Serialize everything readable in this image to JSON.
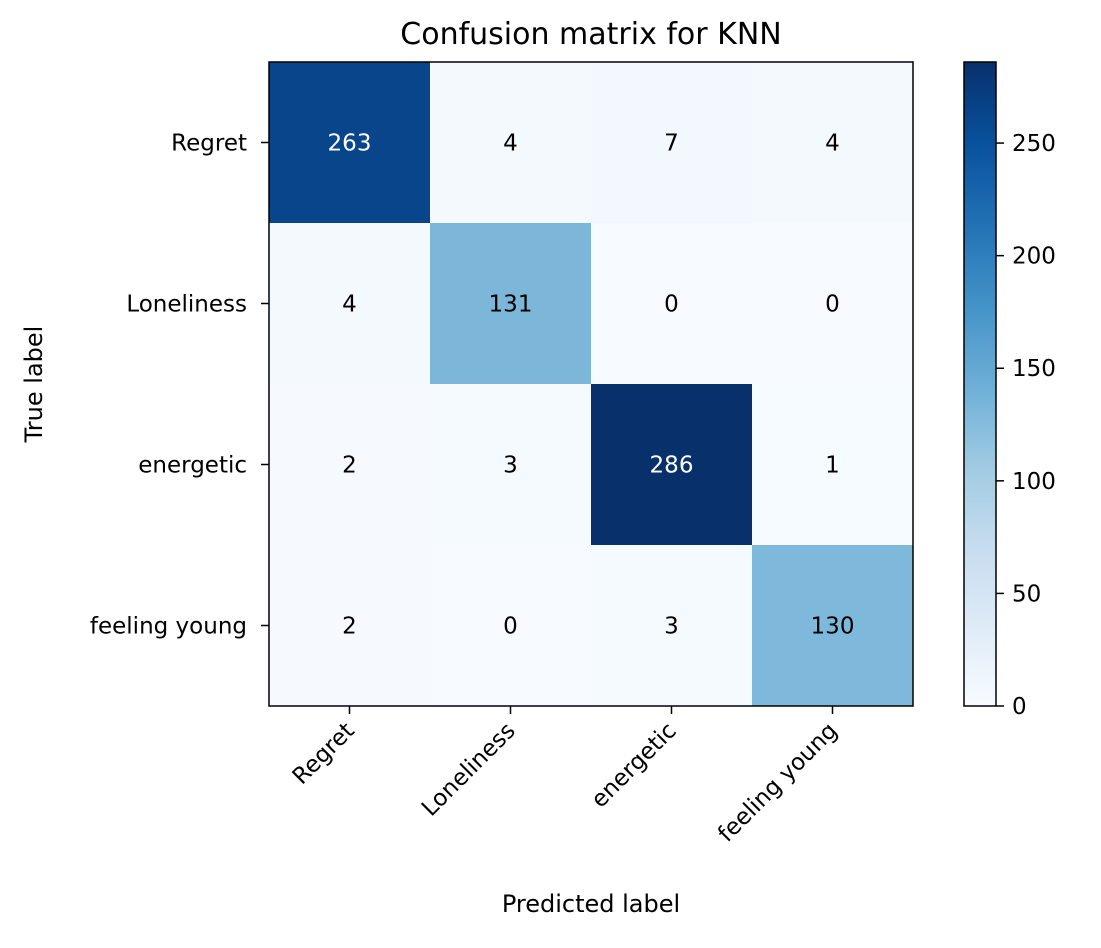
{
  "chart_data": {
    "type": "heatmap",
    "title": "Confusion matrix for KNN",
    "xlabel": "Predicted label",
    "ylabel": "True label",
    "x_categories": [
      "Regret",
      "Loneliness",
      "energetic",
      "feeling young"
    ],
    "y_categories": [
      "Regret",
      "Loneliness",
      "energetic",
      "feeling young"
    ],
    "values": [
      [
        263,
        4,
        7,
        4
      ],
      [
        4,
        131,
        0,
        0
      ],
      [
        2,
        3,
        286,
        1
      ],
      [
        2,
        0,
        3,
        130
      ]
    ],
    "colormap": "Blues",
    "colorbar": {
      "range": [
        0,
        286
      ],
      "ticks": [
        0,
        50,
        100,
        150,
        200,
        250
      ]
    },
    "x_tick_rotation_deg": 45,
    "grid": false
  }
}
